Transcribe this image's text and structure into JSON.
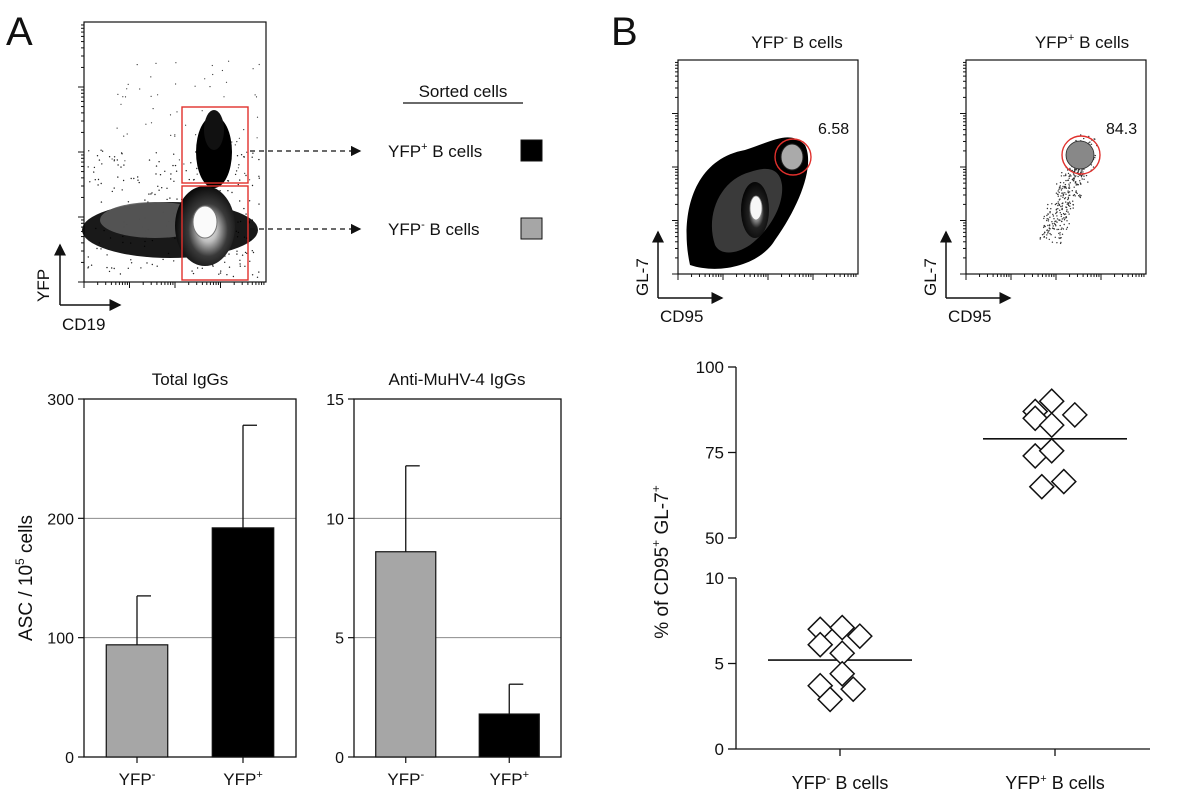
{
  "panel_a": {
    "letter": "A",
    "flow": {
      "x_label": "CD19",
      "y_label": "YFP",
      "sorted_title": "Sorted cells",
      "gates": [
        {
          "label_main": "YFP",
          "label_sup": "+",
          "label_rest": " B cells",
          "swatch": "#000000"
        },
        {
          "label_main": "YFP",
          "label_sup": "-",
          "label_rest": " B cells",
          "swatch": "#a6a6a6"
        }
      ],
      "gate_color": "#e0302c"
    }
  },
  "panel_b": {
    "letter": "B",
    "flow_plots": [
      {
        "title_main": "YFP",
        "title_sup": "-",
        "title_rest": " B cells",
        "gate_value": "6.58",
        "x_label": "CD95",
        "y_label": "GL-7"
      },
      {
        "title_main": "YFP",
        "title_sup": "+",
        "title_rest": " B cells",
        "gate_value": "84.3",
        "x_label": "CD95",
        "y_label": "GL-7"
      }
    ]
  },
  "chart_data": [
    {
      "type": "bar",
      "title": "Total IgGs",
      "ylabel_main": "ASC / 10",
      "ylabel_sup": "5",
      "ylabel_rest": " cells",
      "ylim": [
        0,
        300
      ],
      "yticks": [
        "0",
        "100",
        "200",
        "300"
      ],
      "grid": true,
      "categories": [
        {
          "main": "YFP",
          "sup": "-"
        },
        {
          "main": "YFP",
          "sup": "+"
        }
      ],
      "values": [
        94,
        192
      ],
      "errors": [
        41,
        86
      ],
      "colors": [
        "#a6a6a6",
        "#000000"
      ]
    },
    {
      "type": "bar",
      "title": "Anti-MuHV-4 IgGs",
      "ylim": [
        0,
        15
      ],
      "yticks": [
        "0",
        "5",
        "10",
        "15"
      ],
      "grid": true,
      "categories": [
        {
          "main": "YFP",
          "sup": "-"
        },
        {
          "main": "YFP",
          "sup": "+"
        }
      ],
      "values": [
        8.6,
        1.8
      ],
      "errors": [
        3.6,
        1.25
      ],
      "colors": [
        "#a6a6a6",
        "#000000"
      ]
    },
    {
      "type": "scatter",
      "ylabel": "% of CD95+ GL-7+",
      "ylabel_parts": [
        {
          "t": "% of CD95",
          "sup": false
        },
        {
          "t": "+",
          "sup": true
        },
        {
          "t": " GL-7",
          "sup": false
        },
        {
          "t": "+",
          "sup": true
        }
      ],
      "ylim_lower": [
        0,
        10
      ],
      "ylim_upper": [
        50,
        100
      ],
      "yticks_lower": [
        "0",
        "5",
        "10"
      ],
      "yticks_upper": [
        "50",
        "75",
        "100"
      ],
      "categories": [
        {
          "main": "YFP",
          "sup": "-",
          "rest": " B cells"
        },
        {
          "main": "YFP",
          "sup": "+",
          "rest": " B cells"
        }
      ],
      "series": [
        {
          "points": [
            [
              -0.18,
              7.0
            ],
            [
              -0.18,
              6.1
            ],
            [
              0.02,
              7.1
            ],
            [
              0.18,
              6.6
            ],
            [
              0.02,
              5.6
            ],
            [
              -0.18,
              3.7
            ],
            [
              0.02,
              4.4
            ],
            [
              0.12,
              3.5
            ],
            [
              -0.09,
              2.9
            ]
          ],
          "mean": 5.2
        },
        {
          "points": [
            [
              -0.18,
              87
            ],
            [
              -0.18,
              85
            ],
            [
              -0.03,
              90
            ],
            [
              0.18,
              86
            ],
            [
              -0.03,
              83
            ],
            [
              -0.18,
              74
            ],
            [
              -0.03,
              75.5
            ],
            [
              -0.12,
              65
            ],
            [
              0.08,
              66.5
            ]
          ],
          "mean": 79
        }
      ]
    }
  ]
}
